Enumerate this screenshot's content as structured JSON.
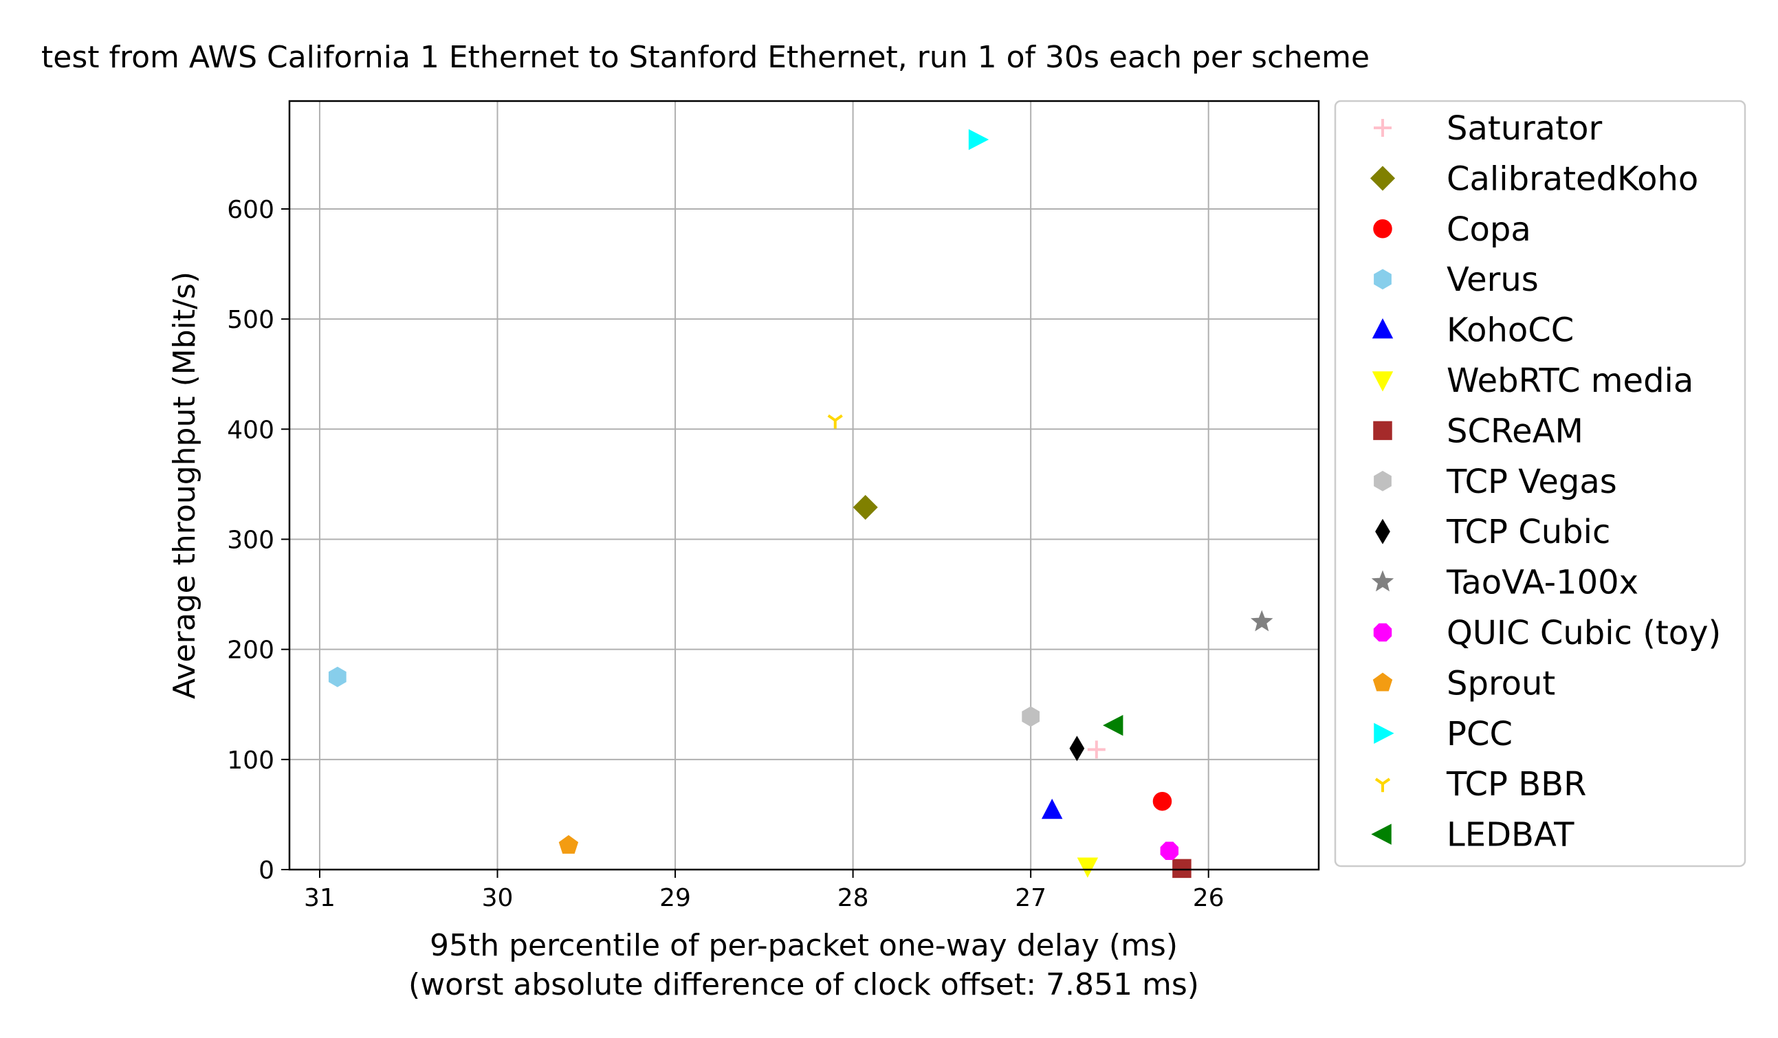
{
  "chart_data": {
    "type": "scatter",
    "title": "test from AWS California 1 Ethernet to Stanford Ethernet, run 1 of 30s each per scheme",
    "xlabel": "95th percentile of per-packet one-way delay (ms)",
    "xlabel_sub": "(worst absolute difference of clock offset: 7.851 ms)",
    "ylabel": "Average throughput (Mbit/s)",
    "xlim": [
      31.17,
      25.38
    ],
    "ylim": [
      0,
      698
    ],
    "x_inverted": true,
    "grid": true,
    "legend_position": "outside-right",
    "x_ticks": [
      31,
      30,
      29,
      28,
      27,
      26
    ],
    "y_ticks": [
      0,
      100,
      200,
      300,
      400,
      500,
      600
    ],
    "series": [
      {
        "name": "Saturator",
        "marker": "plus",
        "color": "#ffc0cb",
        "x": 26.63,
        "y": 109
      },
      {
        "name": "CalibratedKoho",
        "marker": "diamond",
        "color": "#808000",
        "x": 27.93,
        "y": 329
      },
      {
        "name": "Copa",
        "marker": "circle",
        "color": "#ff0000",
        "x": 26.26,
        "y": 62
      },
      {
        "name": "Verus",
        "marker": "hexagon",
        "color": "#87ceeb",
        "x": 30.9,
        "y": 175
      },
      {
        "name": "KohoCC",
        "marker": "triangle-up",
        "color": "#0000ff",
        "x": 26.88,
        "y": 54
      },
      {
        "name": "WebRTC media",
        "marker": "triangle-down",
        "color": "#ffff00",
        "x": 26.68,
        "y": 3
      },
      {
        "name": "SCReAM",
        "marker": "square",
        "color": "#a52a2a",
        "x": 26.15,
        "y": 1
      },
      {
        "name": "TCP Vegas",
        "marker": "hexagon",
        "color": "#c0c0c0",
        "x": 27.0,
        "y": 139
      },
      {
        "name": "TCP Cubic",
        "marker": "thin-diamond",
        "color": "#000000",
        "x": 26.74,
        "y": 110
      },
      {
        "name": "TaoVA-100x",
        "marker": "star",
        "color": "#808080",
        "x": 25.7,
        "y": 225
      },
      {
        "name": "QUIC Cubic (toy)",
        "marker": "octagon",
        "color": "#ff00ff",
        "x": 26.22,
        "y": 17
      },
      {
        "name": "Sprout",
        "marker": "pentagon",
        "color": "#f39c12",
        "x": 29.6,
        "y": 22
      },
      {
        "name": "PCC",
        "marker": "triangle-right",
        "color": "#00ffff",
        "x": 27.3,
        "y": 663
      },
      {
        "name": "TCP BBR",
        "marker": "tri-down",
        "color": "#ffd700",
        "x": 28.1,
        "y": 408
      },
      {
        "name": "LEDBAT",
        "marker": "triangle-left",
        "color": "#008000",
        "x": 26.53,
        "y": 131
      }
    ]
  }
}
